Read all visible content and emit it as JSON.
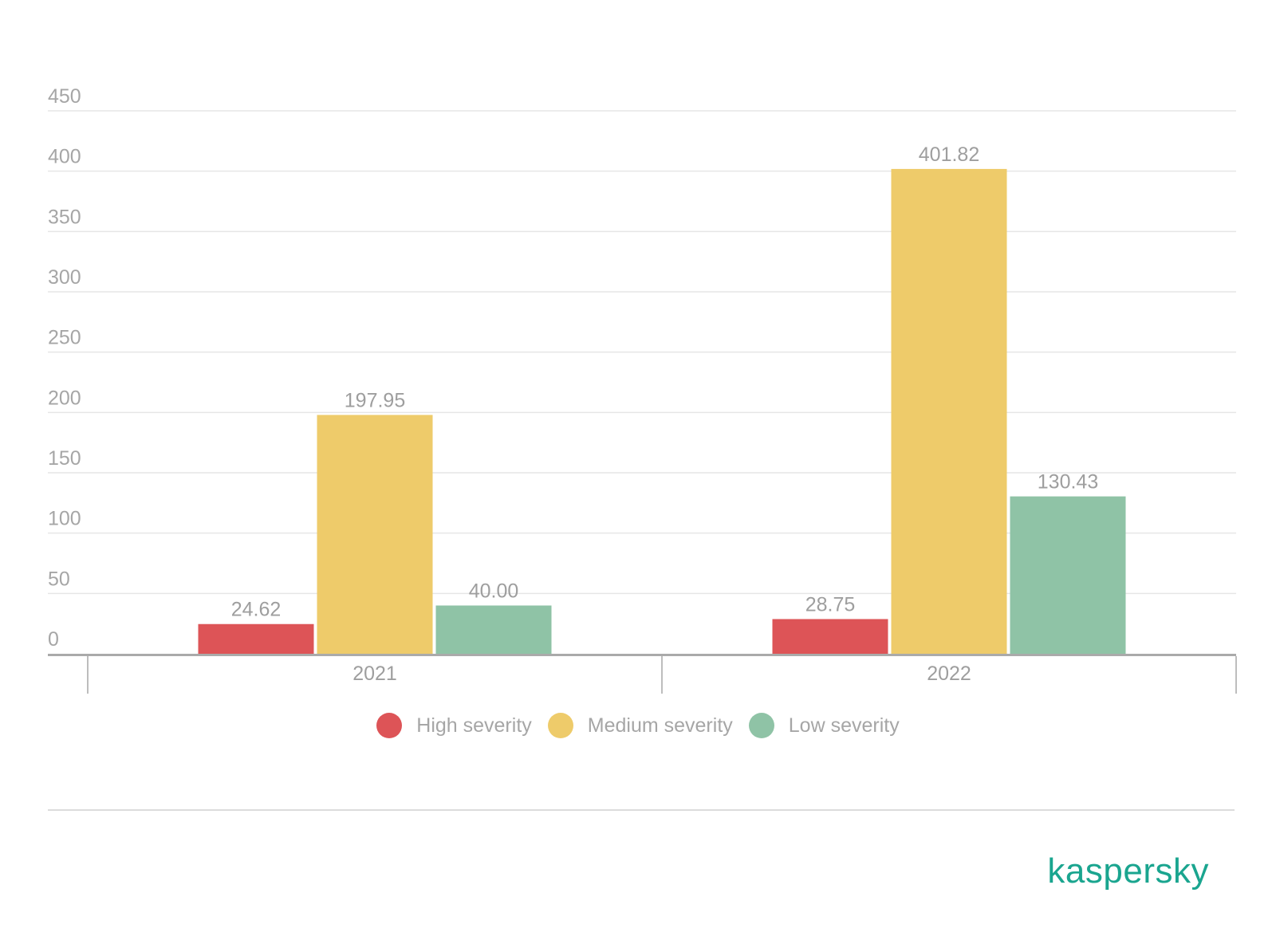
{
  "chart_data": {
    "type": "bar",
    "categories": [
      "2021",
      "2022"
    ],
    "series": [
      {
        "name": "High severity",
        "values": [
          24.62,
          28.75
        ],
        "labels": [
          "24.62",
          "28.75"
        ],
        "color": "#dd5457"
      },
      {
        "name": "Medium severity",
        "values": [
          197.95,
          401.82
        ],
        "labels": [
          "197.95",
          "401.82"
        ],
        "color": "#eecb6a"
      },
      {
        "name": "Low severity",
        "values": [
          40.0,
          130.43
        ],
        "labels": [
          "40.00",
          "130.43"
        ],
        "color": "#8fc3a6"
      }
    ],
    "ylim": [
      0,
      450
    ],
    "yticks": [
      "0",
      "50",
      "100",
      "150",
      "200",
      "250",
      "300",
      "350",
      "400",
      "450"
    ],
    "grid": true,
    "legend": "bottom-center",
    "title": "",
    "xlabel": "",
    "ylabel": ""
  },
  "brand": {
    "logo_text": "kaspersky",
    "color": "#1aa58f"
  }
}
